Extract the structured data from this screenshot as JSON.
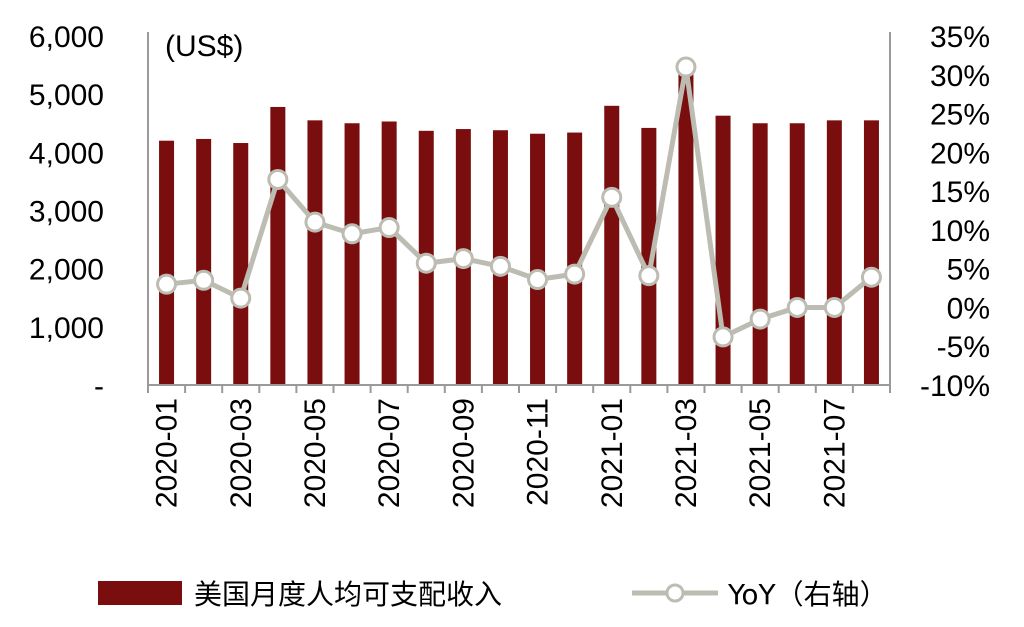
{
  "colors": {
    "bar": "#7a0d0d",
    "line": "#bcbcb2",
    "marker_fill": "#ffffff",
    "axis": "#9a9a9a"
  },
  "chart_data": {
    "type": "bar",
    "unit_label": "(US$)",
    "categories": [
      "2020-01",
      "2020-02",
      "2020-03",
      "2020-04",
      "2020-05",
      "2020-06",
      "2020-07",
      "2020-08",
      "2020-09",
      "2020-10",
      "2020-11",
      "2020-12",
      "2021-01",
      "2021-02",
      "2021-03",
      "2021-04",
      "2021-05",
      "2021-06",
      "2021-07",
      "2021-08"
    ],
    "x_tick_labels": [
      "2020-01",
      "",
      "2020-03",
      "",
      "2020-05",
      "",
      "2020-07",
      "",
      "2020-09",
      "",
      "2020-11",
      "",
      "2021-01",
      "",
      "2021-03",
      "",
      "2021-05",
      "",
      "2021-07",
      ""
    ],
    "left_axis": {
      "ylim": [
        0,
        6000
      ],
      "tick_labels": [
        "-",
        "1,000",
        "2,000",
        "3,000",
        "4,000",
        "5,000",
        "6,000"
      ]
    },
    "right_axis": {
      "ylim": [
        -10,
        35
      ],
      "tick_labels": [
        "-10%",
        "-5%",
        "0%",
        "5%",
        "10%",
        "15%",
        "20%",
        "25%",
        "30%",
        "35%"
      ]
    },
    "series": [
      {
        "name": "美国月度人均可支配收入",
        "type": "bar",
        "axis": "left",
        "values": [
          4200,
          4230,
          4160,
          4780,
          4550,
          4500,
          4530,
          4370,
          4400,
          4380,
          4320,
          4340,
          4800,
          4420,
          5400,
          4630,
          4500,
          4500,
          4550,
          4550
        ]
      },
      {
        "name": "YoY（右轴）",
        "type": "line",
        "axis": "right",
        "values": [
          3.0,
          3.5,
          1.2,
          16.5,
          11.0,
          9.5,
          10.3,
          5.7,
          6.3,
          5.3,
          3.6,
          4.3,
          14.2,
          4.1,
          31.0,
          -3.8,
          -1.5,
          0.0,
          0.0,
          3.9
        ]
      }
    ],
    "grid": false,
    "legend_position": "bottom"
  }
}
